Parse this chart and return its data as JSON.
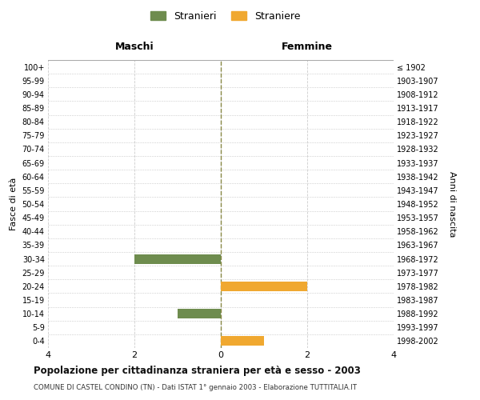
{
  "age_groups": [
    "100+",
    "95-99",
    "90-94",
    "85-89",
    "80-84",
    "75-79",
    "70-74",
    "65-69",
    "60-64",
    "55-59",
    "50-54",
    "45-49",
    "40-44",
    "35-39",
    "30-34",
    "25-29",
    "20-24",
    "15-19",
    "10-14",
    "5-9",
    "0-4"
  ],
  "birth_years": [
    "≤ 1902",
    "1903-1907",
    "1908-1912",
    "1913-1917",
    "1918-1922",
    "1923-1927",
    "1928-1932",
    "1933-1937",
    "1938-1942",
    "1943-1947",
    "1948-1952",
    "1953-1957",
    "1958-1962",
    "1963-1967",
    "1968-1972",
    "1973-1977",
    "1978-1982",
    "1983-1987",
    "1988-1992",
    "1993-1997",
    "1998-2002"
  ],
  "maschi_values": [
    0,
    0,
    0,
    0,
    0,
    0,
    0,
    0,
    0,
    0,
    0,
    0,
    0,
    0,
    2,
    0,
    0,
    0,
    1,
    0,
    0
  ],
  "femmine_values": [
    0,
    0,
    0,
    0,
    0,
    0,
    0,
    0,
    0,
    0,
    0,
    0,
    0,
    0,
    0,
    0,
    2,
    0,
    0,
    0,
    1
  ],
  "maschi_color": "#6e8c4e",
  "femmine_color": "#f0a830",
  "background_color": "#ffffff",
  "grid_color": "#cccccc",
  "xlim": 4,
  "title": "Popolazione per cittadinanza straniera per età e sesso - 2003",
  "subtitle": "COMUNE DI CASTEL CONDINO (TN) - Dati ISTAT 1° gennaio 2003 - Elaborazione TUTTITALIA.IT",
  "ylabel_left": "Fasce di età",
  "ylabel_right": "Anni di nascita",
  "legend_maschi": "Stranieri",
  "legend_femmine": "Straniere",
  "maschi_label": "Maschi",
  "femmine_label": "Femmine",
  "bar_height": 0.7
}
